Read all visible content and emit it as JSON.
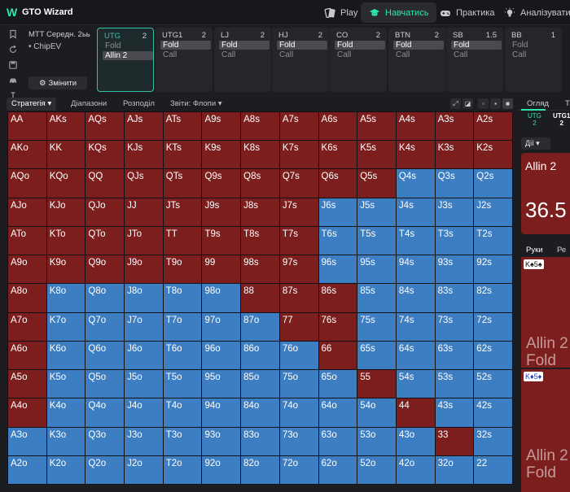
{
  "app": {
    "name": "GTO Wizard"
  },
  "nav": [
    {
      "label": "Play",
      "icon": "cards-icon",
      "active": false
    },
    {
      "label": "Навчатись",
      "icon": "graduation-cap-icon",
      "active": true
    },
    {
      "label": "Практика",
      "icon": "gamepad-icon",
      "active": false
    },
    {
      "label": "Аналізувати",
      "icon": "lightbulb-icon",
      "active": false
    }
  ],
  "settings": {
    "format": "MTT Середн. 2ьь",
    "mode": "ChipEV",
    "change_label": "Змінити"
  },
  "positions": [
    {
      "name": "UTG",
      "stack": "2",
      "options": [
        "Fold",
        "Allin 2"
      ],
      "selected": 1,
      "active": true
    },
    {
      "name": "UTG1",
      "stack": "2",
      "options": [
        "Fold",
        "Call"
      ],
      "selected": 0,
      "active": false
    },
    {
      "name": "LJ",
      "stack": "2",
      "options": [
        "Fold",
        "Call"
      ],
      "selected": 0,
      "active": false
    },
    {
      "name": "HJ",
      "stack": "2",
      "options": [
        "Fold",
        "Call"
      ],
      "selected": 0,
      "active": false
    },
    {
      "name": "CO",
      "stack": "2",
      "options": [
        "Fold",
        "Call"
      ],
      "selected": 0,
      "active": false
    },
    {
      "name": "BTN",
      "stack": "2",
      "options": [
        "Fold",
        "Call"
      ],
      "selected": 0,
      "active": false
    },
    {
      "name": "SB",
      "stack": "1.5",
      "options": [
        "Fold",
        "Call"
      ],
      "selected": 0,
      "active": false
    },
    {
      "name": "BB",
      "stack": "1",
      "options": [
        "Fold",
        "Call"
      ],
      "selected": -1,
      "active": false
    }
  ],
  "tabs": [
    {
      "label": "Стратегія",
      "dropdown": true,
      "active": true
    },
    {
      "label": "Діапазони",
      "dropdown": false,
      "active": false
    },
    {
      "label": "Розподіл",
      "dropdown": false,
      "active": false
    },
    {
      "label": "Звіти: Флопи",
      "dropdown": true,
      "active": false
    }
  ],
  "view_buttons": [
    "expand-icon",
    "layout-icon",
    "grid-small-icon",
    "grid-medium-icon",
    "grid-large-icon"
  ],
  "colors": {
    "allin": "#7c1e1e",
    "fold": "#3d7dc1"
  },
  "matrix": {
    "ranks": [
      "A",
      "K",
      "Q",
      "J",
      "T",
      "9",
      "8",
      "7",
      "6",
      "5",
      "4",
      "3",
      "2"
    ],
    "fold_hands": [
      "Q4s",
      "Q3s",
      "Q2s",
      "J6s",
      "J5s",
      "J4s",
      "J3s",
      "J2s",
      "T6s",
      "T5s",
      "T4s",
      "T3s",
      "T2s",
      "96s",
      "95s",
      "94s",
      "93s",
      "92s",
      "K8o",
      "Q8o",
      "J8o",
      "T8o",
      "98o",
      "85s",
      "84s",
      "83s",
      "82s",
      "K7o",
      "Q7o",
      "J7o",
      "T7o",
      "97o",
      "87o",
      "75s",
      "74s",
      "73s",
      "72s",
      "K6o",
      "Q6o",
      "J6o",
      "T6o",
      "96o",
      "86o",
      "76o",
      "65s",
      "64s",
      "63s",
      "62s",
      "K5o",
      "Q5o",
      "J5o",
      "T5o",
      "95o",
      "85o",
      "75o",
      "65o",
      "54s",
      "53s",
      "52s",
      "K4o",
      "Q4o",
      "J4o",
      "T4o",
      "94o",
      "84o",
      "74o",
      "64o",
      "54o",
      "43s",
      "42s",
      "A3o",
      "K3o",
      "Q3o",
      "J3o",
      "T3o",
      "93o",
      "83o",
      "73o",
      "63o",
      "53o",
      "43o",
      "32s",
      "A2o",
      "K2o",
      "Q2o",
      "J2o",
      "T2o",
      "92o",
      "82o",
      "72o",
      "62o",
      "52o",
      "42o",
      "32o",
      "22"
    ]
  },
  "right_panel": {
    "tabs": [
      "Огляд",
      "Та"
    ],
    "subtabs": [
      {
        "top": "UTG",
        "bottom": "2"
      },
      {
        "top": "UTG1",
        "bottom": "2"
      }
    ],
    "actions_label": "Дії",
    "allin_label": "Allin 2",
    "allin_value": "36.5",
    "hand_tabs": [
      "Руки",
      "Ре"
    ],
    "combos": [
      {
        "rank1": "K",
        "suit1": "♠",
        "rank2": "5",
        "suit2": "♠",
        "red": false,
        "line1": "Allin 2",
        "line2": "Fold"
      },
      {
        "rank1": "K",
        "suit1": "♦",
        "rank2": "5",
        "suit2": "♦",
        "red": true,
        "line1": "Allin 2",
        "line2": "Fold"
      }
    ]
  }
}
